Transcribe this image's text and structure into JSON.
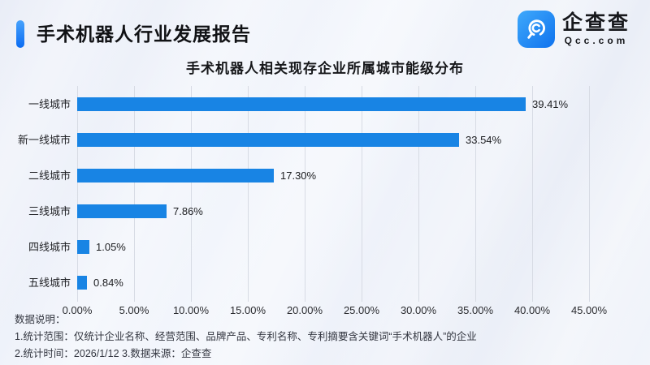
{
  "header": {
    "title": "手术机器人行业发展报告",
    "logo": {
      "brand": "企查查",
      "domain": "Qcc.com",
      "icon": "qcc-magnifier-icon"
    }
  },
  "chart_data": {
    "type": "bar",
    "orientation": "horizontal",
    "title": "手术机器人相关现存企业所属城市能级分布",
    "categories": [
      "一线城市",
      "新一线城市",
      "二线城市",
      "三线城市",
      "四线城市",
      "五线城市"
    ],
    "values": [
      39.41,
      33.54,
      17.3,
      7.86,
      1.05,
      0.84
    ],
    "value_labels": [
      "39.41%",
      "33.54%",
      "17.30%",
      "7.86%",
      "1.05%",
      "0.84%"
    ],
    "xlabel": "",
    "ylabel": "",
    "xlim": [
      0,
      45
    ],
    "x_tick_step": 5,
    "x_tick_labels": [
      "0.00%",
      "5.00%",
      "10.00%",
      "15.00%",
      "20.00%",
      "25.00%",
      "30.00%",
      "35.00%",
      "40.00%",
      "45.00%"
    ],
    "grid": true,
    "legend": false,
    "bar_color": "#1884e4",
    "grid_color": "#d7dbe4"
  },
  "notes": {
    "heading": "数据说明：",
    "line1": "1.统计范围：仅统计企业名称、经营范围、品牌产品、专利名称、专利摘要含关键词“手术机器人”的企业",
    "line2": "2.统计时间：2026/1/12  3.数据来源：企查查"
  },
  "colors": {
    "accent_start": "#47a2fc",
    "accent_end": "#0b6cf2",
    "logo_gradient_start": "#3fa9fb",
    "logo_gradient_end": "#0f72ee",
    "background": "#eef1f8"
  }
}
